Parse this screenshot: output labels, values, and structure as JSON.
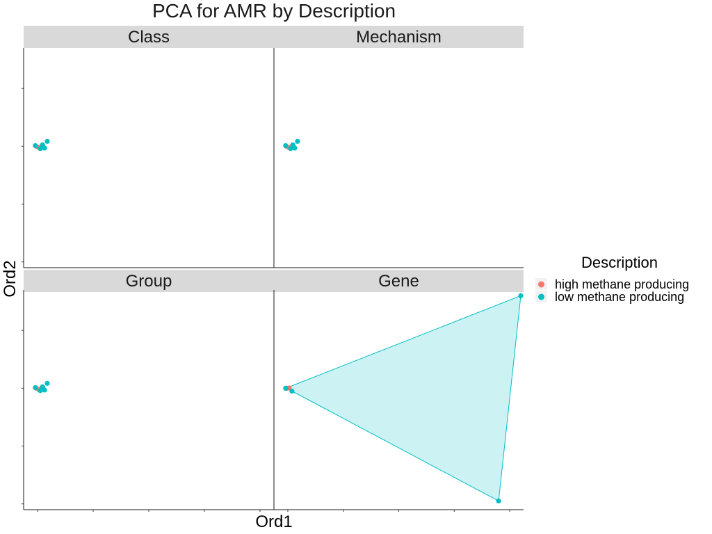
{
  "chart_data": {
    "type": "scatter",
    "title": "PCA for AMR by Description",
    "xlabel": "Ord1",
    "ylabel": "Ord2",
    "facet_order": [
      "Class",
      "Mechanism",
      "Group",
      "Gene"
    ],
    "xlim": [
      -0.5,
      8.5
    ],
    "ylim": [
      -4.2,
      3.4
    ],
    "legend": {
      "title": "Description",
      "position": "right",
      "entries": [
        {
          "name": "high methane producing",
          "color": "#F8766D"
        },
        {
          "name": "low methane producing",
          "color": "#00BFC4"
        }
      ]
    },
    "panels": [
      {
        "name": "Class",
        "series": [
          {
            "name": "high methane producing",
            "points": [
              [
                -0.05,
                0.0
              ],
              [
                0.05,
                -0.05
              ],
              [
                0.12,
                -0.02
              ],
              [
                0.2,
                0.0
              ]
            ]
          },
          {
            "name": "low methane producing",
            "points": [
              [
                -0.08,
                0.02
              ],
              [
                0.1,
                -0.08
              ],
              [
                0.25,
                -0.06
              ],
              [
                0.18,
                0.05
              ],
              [
                0.35,
                0.17
              ]
            ]
          }
        ],
        "hull": null
      },
      {
        "name": "Mechanism",
        "series": [
          {
            "name": "high methane producing",
            "points": [
              [
                -0.05,
                0.0
              ],
              [
                0.05,
                -0.05
              ],
              [
                0.12,
                -0.02
              ],
              [
                0.2,
                0.0
              ]
            ]
          },
          {
            "name": "low methane producing",
            "points": [
              [
                -0.08,
                0.02
              ],
              [
                0.1,
                -0.08
              ],
              [
                0.25,
                -0.06
              ],
              [
                0.18,
                0.05
              ],
              [
                0.35,
                0.17
              ]
            ]
          }
        ],
        "hull": null
      },
      {
        "name": "Group",
        "series": [
          {
            "name": "high methane producing",
            "points": [
              [
                -0.05,
                0.0
              ],
              [
                0.05,
                -0.05
              ],
              [
                0.12,
                -0.02
              ],
              [
                0.2,
                0.0
              ]
            ]
          },
          {
            "name": "low methane producing",
            "points": [
              [
                -0.08,
                0.02
              ],
              [
                0.1,
                -0.08
              ],
              [
                0.25,
                -0.06
              ],
              [
                0.18,
                0.05
              ],
              [
                0.35,
                0.17
              ]
            ]
          }
        ],
        "hull": null
      },
      {
        "name": "Gene",
        "series": [
          {
            "name": "high methane producing",
            "points": [
              [
                -0.02,
                0.0
              ],
              [
                0.05,
                0.01
              ]
            ]
          },
          {
            "name": "low methane producing",
            "points": [
              [
                -0.08,
                0.0
              ],
              [
                0.15,
                -0.1
              ],
              [
                8.4,
                3.2
              ],
              [
                7.6,
                -3.9
              ]
            ]
          }
        ],
        "hull": {
          "series": "low methane producing",
          "points": [
            [
              -0.08,
              0.0
            ],
            [
              8.4,
              3.2
            ],
            [
              7.6,
              -3.9
            ],
            [
              0.15,
              -0.1
            ]
          ]
        }
      }
    ]
  }
}
